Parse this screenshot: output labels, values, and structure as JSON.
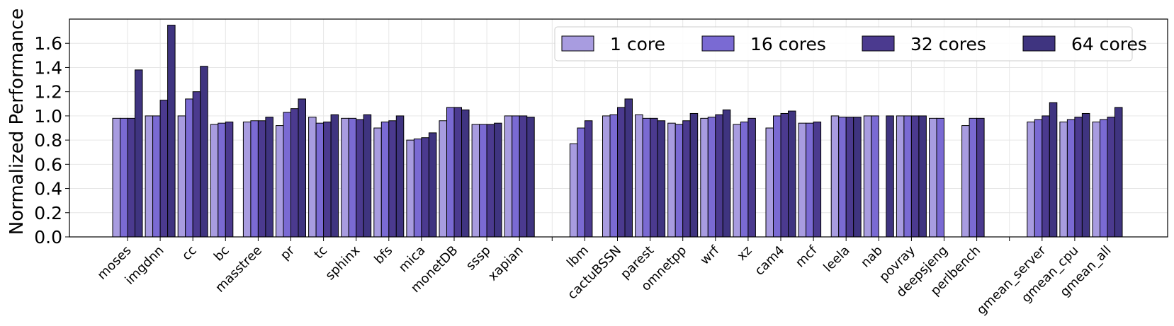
{
  "chart_data": {
    "type": "bar",
    "ylabel": "Normalized Performance",
    "xlabel": "",
    "ylim": [
      0,
      1.8
    ],
    "yticks": [
      "0.0",
      "0.2",
      "0.4",
      "0.6",
      "0.8",
      "1.0",
      "1.2",
      "1.4",
      "1.6"
    ],
    "grid": true,
    "legend_position": "top-right",
    "categories": [
      "moses",
      "imgdnn",
      "cc",
      "bc",
      "masstree",
      "pr",
      "tc",
      "sphinx",
      "bfs",
      "mica",
      "monetDB",
      "sssp",
      "xapian",
      "",
      "lbm",
      "cactuBSSN",
      "parest",
      "omnetpp",
      "wrf",
      "xz",
      "cam4",
      "mcf",
      "leela",
      "nab",
      "povray",
      "deepsjeng",
      "perlbench",
      "",
      "gmean_server",
      "gmean_cpu",
      "gmean_all"
    ],
    "series": [
      {
        "name": "1 core",
        "color": "#a89ce0",
        "values": [
          0.98,
          1.0,
          1.0,
          0.93,
          0.95,
          0.92,
          0.99,
          0.98,
          0.9,
          0.8,
          0.96,
          0.93,
          1.0,
          0,
          0.77,
          1.0,
          1.01,
          0.94,
          0.98,
          0.93,
          0.9,
          0.94,
          1.0,
          1.0,
          1.0,
          0.98,
          0.92,
          0,
          0.95,
          0.95,
          0.95
        ]
      },
      {
        "name": "16 cores",
        "color": "#7a6ad3",
        "values": [
          0.98,
          1.0,
          1.14,
          0.94,
          0.96,
          1.03,
          0.94,
          0.98,
          0.95,
          0.81,
          1.07,
          0.93,
          1.0,
          0,
          0.9,
          1.01,
          0.98,
          0.93,
          0.99,
          0.95,
          1.0,
          0.94,
          0.99,
          1.0,
          1.0,
          0.98,
          0.98,
          0,
          0.97,
          0.97,
          0.97
        ]
      },
      {
        "name": "32 cores",
        "color": "#4b3a8f",
        "values": [
          0.98,
          1.13,
          1.2,
          0.95,
          0.96,
          1.06,
          0.95,
          0.97,
          0.96,
          0.82,
          1.07,
          0.93,
          1.0,
          0,
          0.96,
          1.07,
          0.98,
          0.96,
          1.01,
          0.98,
          1.02,
          0.95,
          0.99,
          0,
          1.0,
          0,
          0.98,
          0,
          1.0,
          0.99,
          0.99
        ]
      },
      {
        "name": "64 cores",
        "color": "#3f3480",
        "values": [
          1.38,
          1.75,
          1.41,
          0,
          0.99,
          1.14,
          1.01,
          1.01,
          1.0,
          0.86,
          1.05,
          0.94,
          0.99,
          0,
          0,
          1.14,
          0.96,
          1.02,
          1.05,
          0,
          1.04,
          0,
          0.99,
          1.0,
          1.0,
          0,
          0,
          0,
          1.11,
          1.02,
          1.07
        ]
      }
    ]
  }
}
